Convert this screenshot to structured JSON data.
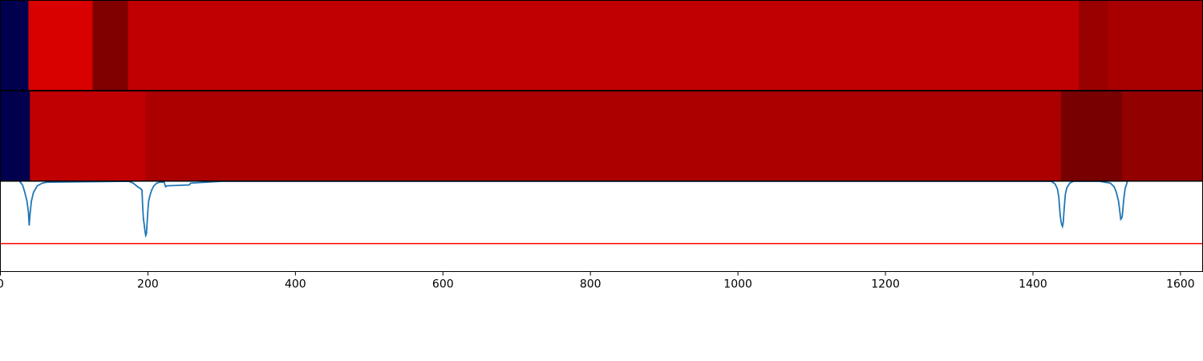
{
  "chart_data": {
    "type": "heatmap",
    "xlim": [
      0,
      1630
    ],
    "x_ticks": [
      "0",
      "200",
      "400",
      "600",
      "800",
      "1000",
      "1200",
      "1400",
      "1600"
    ],
    "x_tick_values": [
      0,
      200,
      400,
      600,
      800,
      1000,
      1200,
      1400,
      1600
    ],
    "panels": [
      {
        "type": "heatmap",
        "segments": [
          {
            "start": 0,
            "end": 38,
            "color": "#00004f"
          },
          {
            "start": 38,
            "end": 125,
            "color": "#d90000"
          },
          {
            "start": 125,
            "end": 173,
            "color": "#800000"
          },
          {
            "start": 173,
            "end": 1462,
            "color": "#c00000"
          },
          {
            "start": 1462,
            "end": 1502,
            "color": "#990000"
          },
          {
            "start": 1502,
            "end": 1630,
            "color": "#a80000"
          }
        ]
      },
      {
        "type": "heatmap",
        "segments": [
          {
            "start": 0,
            "end": 40,
            "color": "#00004f"
          },
          {
            "start": 40,
            "end": 197,
            "color": "#c00000"
          },
          {
            "start": 197,
            "end": 1438,
            "color": "#aa0000"
          },
          {
            "start": 1438,
            "end": 1521,
            "color": "#780000"
          },
          {
            "start": 1521,
            "end": 1630,
            "color": "#930000"
          }
        ]
      },
      {
        "type": "line",
        "ylim": [
          0,
          1
        ],
        "threshold": 0.31,
        "threshold_color": "#ff0000",
        "line_color": "#1f77b4",
        "x": [
          26,
          30,
          33,
          36,
          38,
          39,
          40,
          42,
          45,
          50,
          57,
          63,
          174,
          180,
          186,
          190,
          192,
          193,
          194,
          195,
          196,
          197,
          198,
          199,
          200,
          201,
          203,
          205,
          208,
          212,
          216,
          219,
          222,
          224,
          226,
          256,
          258,
          300,
          1425,
          1430,
          1433,
          1435,
          1436,
          1437,
          1438,
          1439,
          1440,
          1441,
          1442,
          1443,
          1444,
          1446,
          1450,
          1455,
          1490,
          1505,
          1510,
          1513,
          1516,
          1518,
          1519,
          1520,
          1521,
          1522,
          1523,
          1524,
          1525,
          1527,
          1528
        ],
        "y": [
          1.0,
          0.96,
          0.88,
          0.78,
          0.66,
          0.51,
          0.62,
          0.78,
          0.88,
          0.95,
          0.98,
          0.99,
          1.0,
          0.98,
          0.94,
          0.92,
          0.9,
          0.7,
          0.58,
          0.52,
          0.45,
          0.4,
          0.42,
          0.55,
          0.68,
          0.78,
          0.85,
          0.9,
          0.95,
          0.98,
          0.99,
          0.99,
          0.99,
          0.94,
          0.95,
          0.96,
          0.98,
          1.0,
          1.0,
          0.97,
          0.92,
          0.83,
          0.72,
          0.62,
          0.56,
          0.52,
          0.5,
          0.54,
          0.66,
          0.77,
          0.86,
          0.93,
          0.98,
          1.0,
          1.0,
          0.98,
          0.94,
          0.88,
          0.78,
          0.65,
          0.58,
          0.59,
          0.61,
          0.7,
          0.79,
          0.86,
          0.92,
          0.97,
          1.0
        ]
      }
    ]
  }
}
